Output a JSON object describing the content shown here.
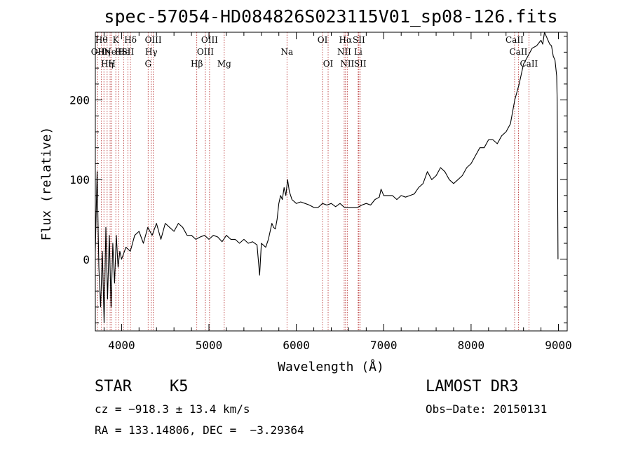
{
  "chart_data": {
    "type": "line",
    "title": "spec-57054-HD084826S023115V01_sp08-126.fits",
    "xlabel": "Wavelength (Å)",
    "ylabel": "Flux (relative)",
    "xlim": [
      3700,
      9100
    ],
    "ylim": [
      -90,
      285
    ],
    "xticks": [
      4000,
      5000,
      6000,
      7000,
      8000,
      9000
    ],
    "yticks": [
      0,
      100,
      200
    ],
    "series": [
      {
        "name": "spectrum",
        "x": [
          3700,
          3720,
          3740,
          3760,
          3780,
          3800,
          3820,
          3840,
          3860,
          3880,
          3900,
          3920,
          3940,
          3960,
          3980,
          4000,
          4050,
          4100,
          4150,
          4200,
          4250,
          4300,
          4350,
          4400,
          4450,
          4500,
          4550,
          4600,
          4650,
          4700,
          4750,
          4800,
          4850,
          4900,
          4950,
          5000,
          5050,
          5100,
          5150,
          5200,
          5250,
          5300,
          5350,
          5400,
          5450,
          5500,
          5550,
          5580,
          5600,
          5620,
          5650,
          5680,
          5700,
          5720,
          5740,
          5760,
          5780,
          5800,
          5820,
          5840,
          5860,
          5880,
          5900,
          5920,
          5950,
          6000,
          6050,
          6100,
          6150,
          6200,
          6250,
          6300,
          6350,
          6400,
          6450,
          6500,
          6550,
          6600,
          6650,
          6700,
          6750,
          6800,
          6850,
          6900,
          6950,
          6970,
          7000,
          7050,
          7100,
          7150,
          7200,
          7250,
          7300,
          7350,
          7400,
          7450,
          7500,
          7550,
          7600,
          7650,
          7700,
          7750,
          7800,
          7850,
          7900,
          7950,
          8000,
          8050,
          8100,
          8150,
          8200,
          8250,
          8300,
          8350,
          8400,
          8450,
          8500,
          8550,
          8600,
          8650,
          8700,
          8750,
          8800,
          8820,
          8840,
          8860,
          8880,
          8900,
          8920,
          8940,
          8960,
          8980,
          8985,
          8990,
          8995
        ],
        "y": [
          10,
          110,
          -10,
          -60,
          10,
          -80,
          40,
          -50,
          30,
          -60,
          20,
          -30,
          30,
          -10,
          10,
          0,
          15,
          10,
          30,
          35,
          20,
          40,
          30,
          45,
          25,
          45,
          40,
          35,
          45,
          40,
          30,
          30,
          25,
          28,
          30,
          25,
          30,
          28,
          22,
          30,
          25,
          25,
          20,
          25,
          20,
          22,
          18,
          -20,
          20,
          18,
          15,
          25,
          35,
          45,
          40,
          38,
          50,
          70,
          80,
          75,
          90,
          80,
          100,
          85,
          75,
          70,
          72,
          70,
          68,
          65,
          65,
          70,
          68,
          70,
          66,
          70,
          65,
          65,
          65,
          65,
          68,
          70,
          68,
          75,
          78,
          88,
          80,
          80,
          80,
          75,
          80,
          78,
          80,
          82,
          90,
          95,
          110,
          100,
          105,
          115,
          110,
          100,
          95,
          100,
          105,
          115,
          120,
          130,
          140,
          140,
          150,
          150,
          145,
          155,
          160,
          170,
          200,
          220,
          245,
          255,
          265,
          268,
          275,
          270,
          285,
          280,
          275,
          270,
          268,
          255,
          250,
          230,
          200,
          100,
          0
        ]
      }
    ],
    "lines": [
      {
        "wave": 3727,
        "row": 1,
        "label": "OII"
      },
      {
        "wave": 3770,
        "row": 0,
        "label": "Hθ"
      },
      {
        "wave": 3798,
        "row": 1,
        "label": "Hη"
      },
      {
        "wave": 3835,
        "row": 2,
        "label": "Hη"
      },
      {
        "wave": 3869,
        "row": 1,
        "label": "Ne"
      },
      {
        "wave": 3889,
        "row": 2,
        "label": "H"
      },
      {
        "wave": 3934,
        "row": 0,
        "label": "K"
      },
      {
        "wave": 3968,
        "row": 1,
        "label": "H"
      },
      {
        "wave": 4026,
        "row": 1,
        "label": "He"
      },
      {
        "wave": 4072,
        "row": 1,
        "label": "SII"
      },
      {
        "wave": 4102,
        "row": 0,
        "label": "Hδ"
      },
      {
        "wave": 4304,
        "row": 2,
        "label": "G"
      },
      {
        "wave": 4340,
        "row": 1,
        "label": "Hγ"
      },
      {
        "wave": 4363,
        "row": 0,
        "label": "OIII"
      },
      {
        "wave": 4861,
        "row": 2,
        "label": "Hβ"
      },
      {
        "wave": 4959,
        "row": 1,
        "label": "OIII"
      },
      {
        "wave": 5007,
        "row": 0,
        "label": "OIII"
      },
      {
        "wave": 5175,
        "row": 2,
        "label": "Mg"
      },
      {
        "wave": 5893,
        "row": 1,
        "label": "Na"
      },
      {
        "wave": 6300,
        "row": 0,
        "label": "OI"
      },
      {
        "wave": 6364,
        "row": 2,
        "label": "OI"
      },
      {
        "wave": 6548,
        "row": 1,
        "label": "NII"
      },
      {
        "wave": 6563,
        "row": 0,
        "label": "Hα"
      },
      {
        "wave": 6583,
        "row": 2,
        "label": "NII"
      },
      {
        "wave": 6708,
        "row": 1,
        "label": "Li"
      },
      {
        "wave": 6716,
        "row": 0,
        "label": "SII"
      },
      {
        "wave": 6731,
        "row": 2,
        "label": "SII"
      },
      {
        "wave": 8498,
        "row": 0,
        "label": "CaII"
      },
      {
        "wave": 8542,
        "row": 1,
        "label": "CaII"
      },
      {
        "wave": 8662,
        "row": 2,
        "label": "CaII"
      }
    ]
  },
  "info": {
    "object_class": "STAR",
    "subclass": "K5",
    "survey": "LAMOST DR3",
    "velocity": "cz = −918.3 ± 13.4 km/s",
    "obs_date": "Obs−Date: 20150131",
    "coords": "RA = 133.14806, DEC =  −3.29364"
  },
  "colors": {
    "spectrum": "#000000",
    "line_marker": "#b22222",
    "background": "#ffffff"
  }
}
